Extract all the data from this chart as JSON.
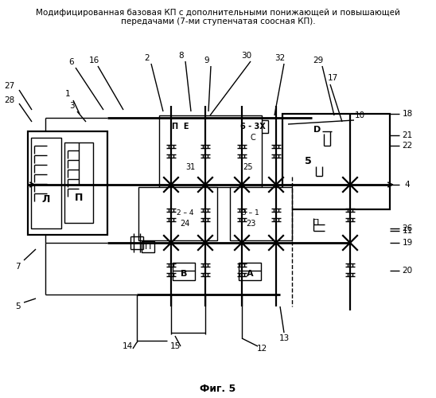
{
  "title_line1": "Модифицированная базовая КП с дополнительными понижающей и повышающей",
  "title_line2": "передачами (7-ми ступенчатая соосная КП).",
  "caption": "Фиг. 5",
  "bg_color": "#ffffff",
  "fig_width": 5.48,
  "fig_height": 5.0,
  "dpi": 100
}
